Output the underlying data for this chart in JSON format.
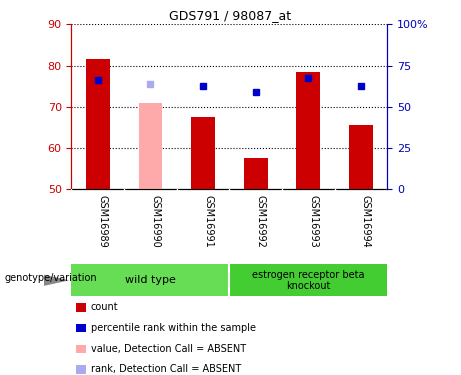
{
  "title": "GDS791 / 98087_at",
  "samples": [
    "GSM16989",
    "GSM16990",
    "GSM16991",
    "GSM16992",
    "GSM16993",
    "GSM16994"
  ],
  "bar_values": [
    81.5,
    71.0,
    67.5,
    57.5,
    78.5,
    65.5
  ],
  "bar_colors": [
    "#cc0000",
    "#ffaaaa",
    "#cc0000",
    "#cc0000",
    "#cc0000",
    "#cc0000"
  ],
  "dot_values": [
    76.5,
    75.5,
    75.0,
    73.5,
    77.0,
    75.0
  ],
  "dot_colors": [
    "#0000cc",
    "#aaaaee",
    "#0000cc",
    "#0000cc",
    "#0000cc",
    "#0000cc"
  ],
  "ylim_left": [
    50,
    90
  ],
  "ylim_right": [
    0,
    100
  ],
  "yticks_left": [
    50,
    60,
    70,
    80,
    90
  ],
  "yticks_right": [
    0,
    25,
    50,
    75,
    100
  ],
  "ytick_labels_right": [
    "0",
    "25",
    "50",
    "75",
    "100%"
  ],
  "group1_label": "wild type",
  "group2_label": "estrogen receptor beta\nknockout",
  "group1_samples": [
    0,
    1,
    2
  ],
  "group2_samples": [
    3,
    4,
    5
  ],
  "genotype_label": "genotype/variation",
  "legend_items": [
    {
      "label": "count",
      "color": "#cc0000"
    },
    {
      "label": "percentile rank within the sample",
      "color": "#0000cc"
    },
    {
      "label": "value, Detection Call = ABSENT",
      "color": "#ffaaaa"
    },
    {
      "label": "rank, Detection Call = ABSENT",
      "color": "#aaaaee"
    }
  ],
  "bar_width": 0.45,
  "left_axis_color": "#cc0000",
  "right_axis_color": "#0000bb",
  "gray_bg": "#c8c8c8",
  "green_bg": "#66dd55"
}
